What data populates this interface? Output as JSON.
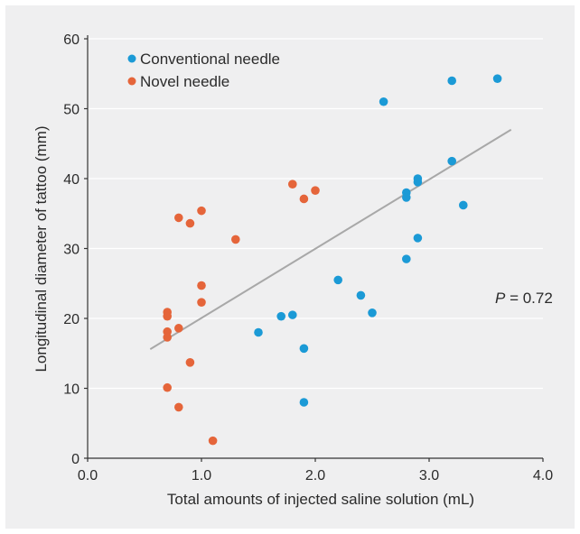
{
  "chart_data": {
    "type": "scatter",
    "xlabel": "Total amounts of injected saline solution (mL)",
    "ylabel": "Longitudinal diameter of tattoo (mm)",
    "xlim": [
      0,
      4.0
    ],
    "ylim": [
      0,
      60
    ],
    "x_ticks": [
      "0.0",
      "1.0",
      "2.0",
      "3.0",
      "4.0"
    ],
    "y_ticks": [
      "0",
      "10",
      "20",
      "30",
      "40",
      "50",
      "60"
    ],
    "grid": "horizontal",
    "legend_position": "top-left",
    "series": [
      {
        "name": "Conventional needle",
        "color": "#1b9ad6",
        "points": [
          [
            1.5,
            18.0
          ],
          [
            1.7,
            20.3
          ],
          [
            1.8,
            20.5
          ],
          [
            1.9,
            15.7
          ],
          [
            1.9,
            8.0
          ],
          [
            2.2,
            25.5
          ],
          [
            2.4,
            23.3
          ],
          [
            2.5,
            20.8
          ],
          [
            2.6,
            51.0
          ],
          [
            2.8,
            38.0
          ],
          [
            2.8,
            37.3
          ],
          [
            2.8,
            28.5
          ],
          [
            2.9,
            40.0
          ],
          [
            2.9,
            39.5
          ],
          [
            2.9,
            31.5
          ],
          [
            3.2,
            54.0
          ],
          [
            3.2,
            42.5
          ],
          [
            3.3,
            36.2
          ],
          [
            3.6,
            54.3
          ]
        ]
      },
      {
        "name": "Novel needle",
        "color": "#e5653a",
        "points": [
          [
            0.7,
            20.9
          ],
          [
            0.7,
            20.3
          ],
          [
            0.7,
            18.1
          ],
          [
            0.7,
            17.3
          ],
          [
            0.7,
            10.1
          ],
          [
            0.8,
            34.4
          ],
          [
            0.8,
            18.6
          ],
          [
            0.8,
            7.3
          ],
          [
            0.9,
            33.6
          ],
          [
            0.9,
            13.7
          ],
          [
            1.0,
            35.4
          ],
          [
            1.0,
            24.7
          ],
          [
            1.0,
            22.3
          ],
          [
            1.1,
            2.5
          ],
          [
            1.3,
            31.3
          ],
          [
            1.8,
            39.2
          ],
          [
            1.9,
            37.1
          ],
          [
            2.0,
            38.3
          ]
        ]
      }
    ],
    "trendline": {
      "color": "#a8a8a8",
      "from": [
        0.55,
        15.6
      ],
      "to": [
        3.72,
        47.0
      ]
    },
    "annotation": {
      "italic": "P",
      "text": " = 0.72"
    }
  }
}
